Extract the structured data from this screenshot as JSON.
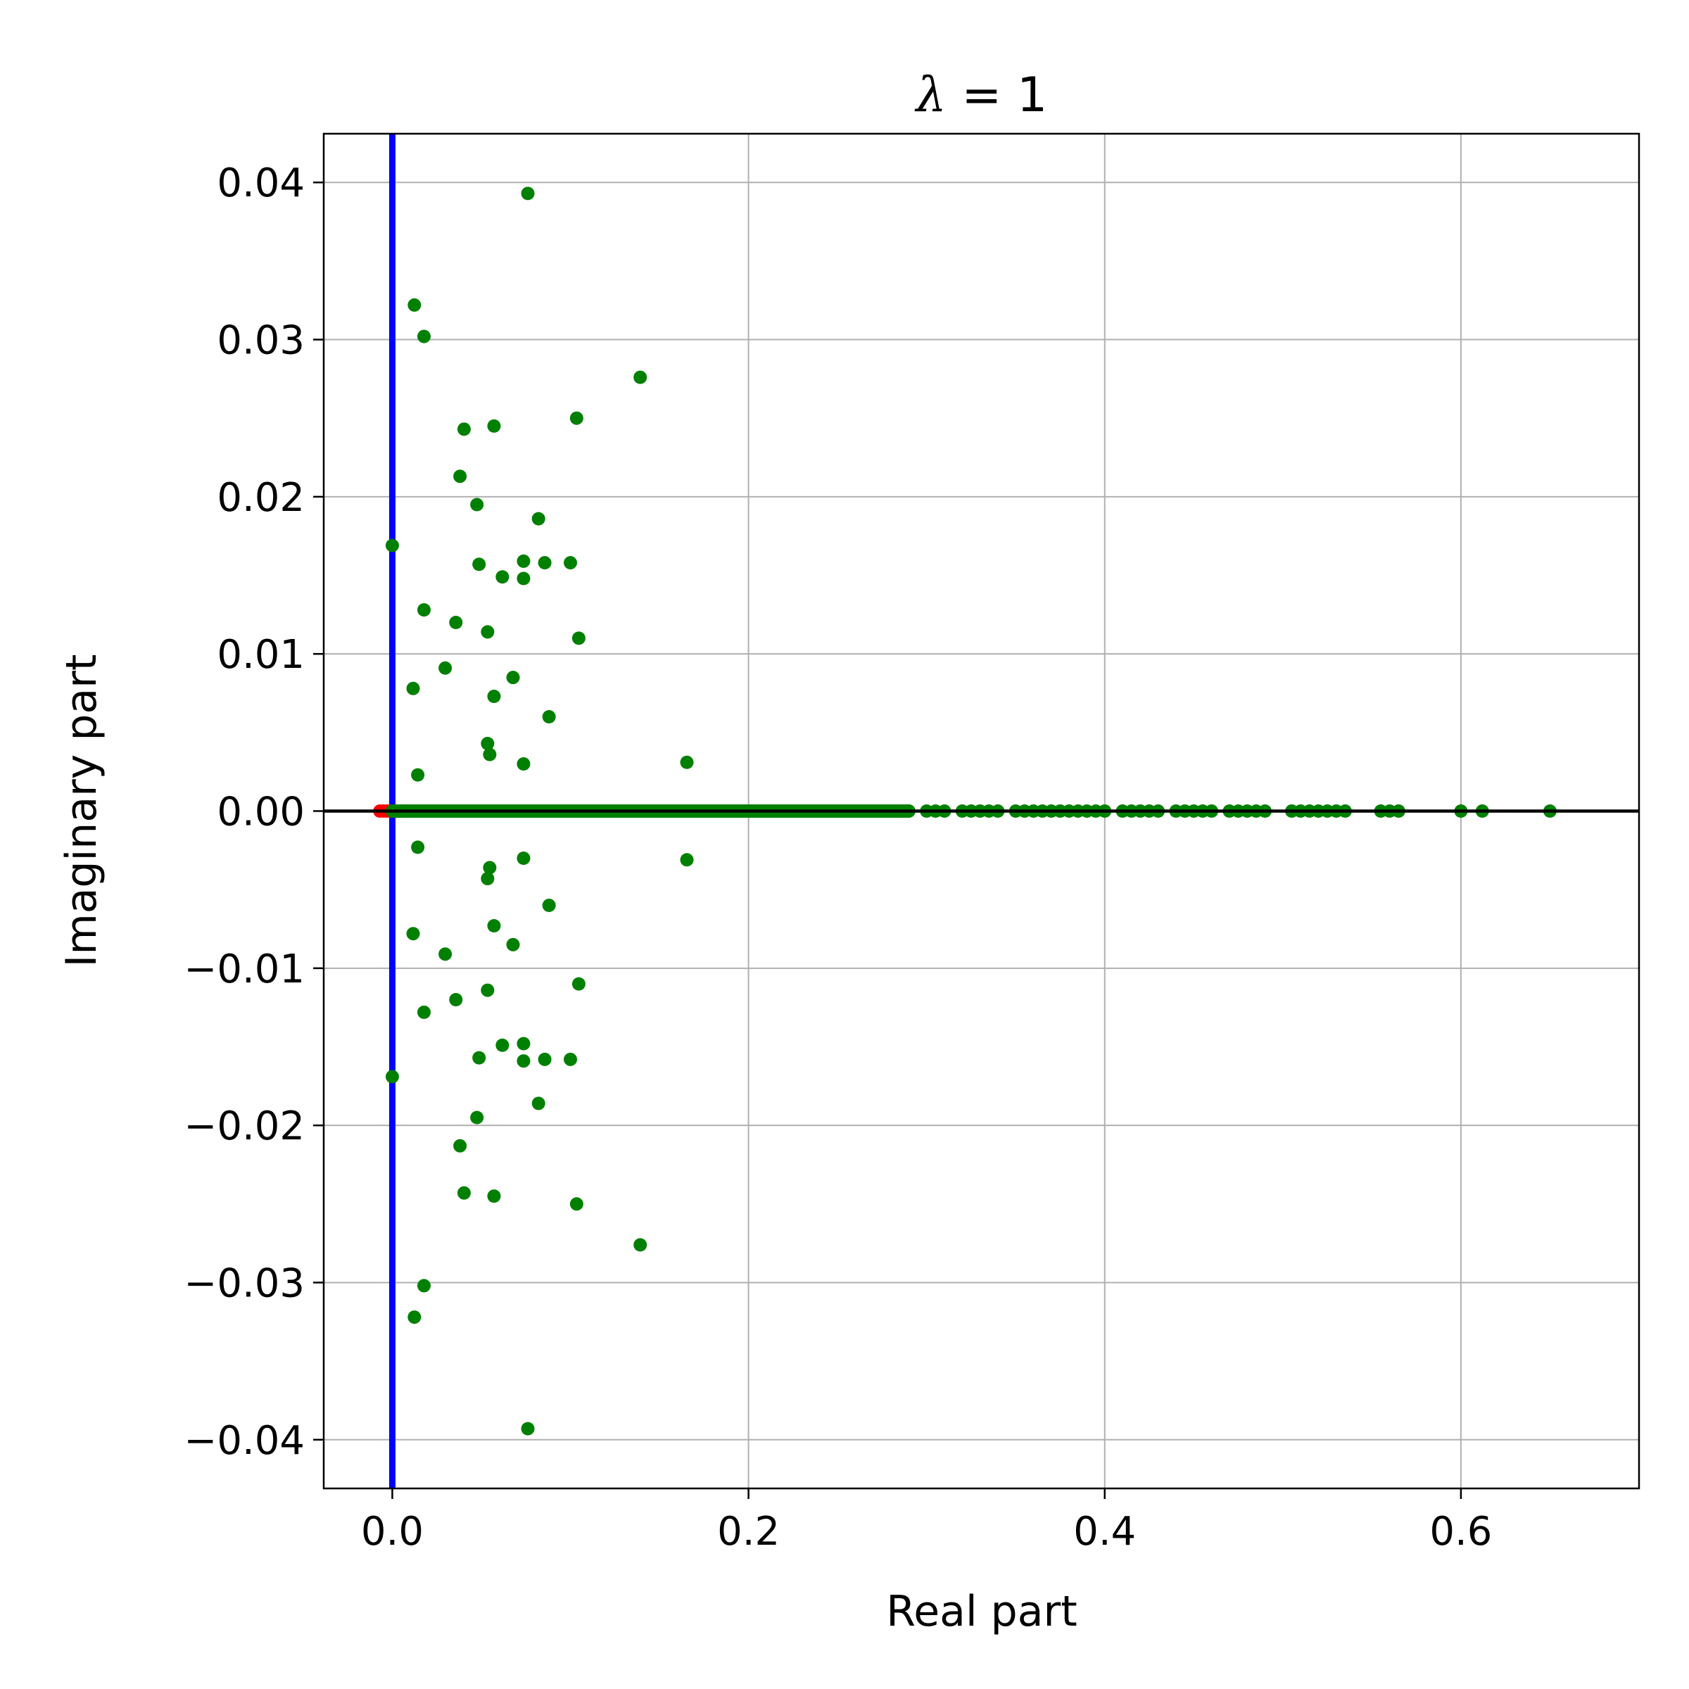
{
  "chart_data": {
    "type": "scatter",
    "title_symbol": "λ",
    "title_rest": " = 1",
    "xlabel": "Real part",
    "ylabel": "Imaginary part",
    "xlim": [
      -0.0385,
      0.7
    ],
    "ylim": [
      -0.0431,
      0.0431
    ],
    "grid": true,
    "legend": "none",
    "x_ticks": [
      0.0,
      0.2,
      0.4,
      0.6
    ],
    "x_tick_labels": [
      "0.0",
      "0.2",
      "0.4",
      "0.6"
    ],
    "y_ticks": [
      0.04,
      0.03,
      0.02,
      0.01,
      0.0,
      -0.01,
      -0.02,
      -0.03,
      -0.04
    ],
    "y_tick_labels": [
      "0.04",
      "0.03",
      "0.02",
      "0.01",
      "0.00",
      "−0.01",
      "−0.02",
      "−0.03",
      "−0.04"
    ],
    "colors": {
      "complex_points": "#008000",
      "real_points": "#008000",
      "negative_points": "#ff0000",
      "imag_axis_line": "#0000ff",
      "real_axis_line": "#000000",
      "grid": "#b0b0b0"
    },
    "reference_lines": {
      "vertical_x": 0.0,
      "horizontal_y": 0.0
    },
    "complex_pairs": [
      [
        0.0,
        0.0169
      ],
      [
        0.0117,
        0.0078
      ],
      [
        0.0124,
        0.0322
      ],
      [
        0.0143,
        0.0023
      ],
      [
        0.0178,
        0.0302
      ],
      [
        0.0178,
        0.0128
      ],
      [
        0.0297,
        0.0091
      ],
      [
        0.0357,
        0.012
      ],
      [
        0.038,
        0.0213
      ],
      [
        0.0403,
        0.0243
      ],
      [
        0.0475,
        0.0195
      ],
      [
        0.0487,
        0.0157
      ],
      [
        0.0535,
        0.0114
      ],
      [
        0.0535,
        0.0043
      ],
      [
        0.0547,
        0.0036
      ],
      [
        0.0571,
        0.0245
      ],
      [
        0.0571,
        0.0073
      ],
      [
        0.0618,
        0.0149
      ],
      [
        0.0678,
        0.0085
      ],
      [
        0.0737,
        0.0159
      ],
      [
        0.0737,
        0.0148
      ],
      [
        0.0737,
        0.003
      ],
      [
        0.0761,
        0.0393
      ],
      [
        0.0821,
        0.0186
      ],
      [
        0.0856,
        0.0158
      ],
      [
        0.088,
        0.006
      ],
      [
        0.1,
        0.0158
      ],
      [
        0.1035,
        0.025
      ],
      [
        0.1047,
        0.011
      ],
      [
        0.1392,
        0.0276
      ],
      [
        0.1654,
        0.0031
      ]
    ],
    "negative_real_points": [
      -0.007,
      -0.005,
      -0.003,
      -0.001
    ],
    "real_points": [
      0.0,
      0.005,
      0.01,
      0.015,
      0.02,
      0.025,
      0.03,
      0.035,
      0.04,
      0.045,
      0.05,
      0.055,
      0.06,
      0.065,
      0.07,
      0.075,
      0.08,
      0.085,
      0.09,
      0.095,
      0.1,
      0.105,
      0.11,
      0.115,
      0.12,
      0.125,
      0.13,
      0.135,
      0.14,
      0.145,
      0.15,
      0.155,
      0.16,
      0.165,
      0.17,
      0.175,
      0.18,
      0.185,
      0.19,
      0.195,
      0.2,
      0.205,
      0.21,
      0.215,
      0.22,
      0.225,
      0.23,
      0.235,
      0.24,
      0.245,
      0.25,
      0.26,
      0.265,
      0.27,
      0.275,
      0.28,
      0.285,
      0.29,
      0.3,
      0.305,
      0.31,
      0.32,
      0.325,
      0.33,
      0.335,
      0.34,
      0.35,
      0.355,
      0.36,
      0.365,
      0.37,
      0.375,
      0.38,
      0.385,
      0.39,
      0.395,
      0.4,
      0.41,
      0.415,
      0.42,
      0.425,
      0.43,
      0.44,
      0.445,
      0.45,
      0.455,
      0.46,
      0.47,
      0.475,
      0.48,
      0.485,
      0.49,
      0.505,
      0.51,
      0.515,
      0.52,
      0.525,
      0.53,
      0.535,
      0.555,
      0.56,
      0.565,
      0.6,
      0.612,
      0.65
    ]
  }
}
